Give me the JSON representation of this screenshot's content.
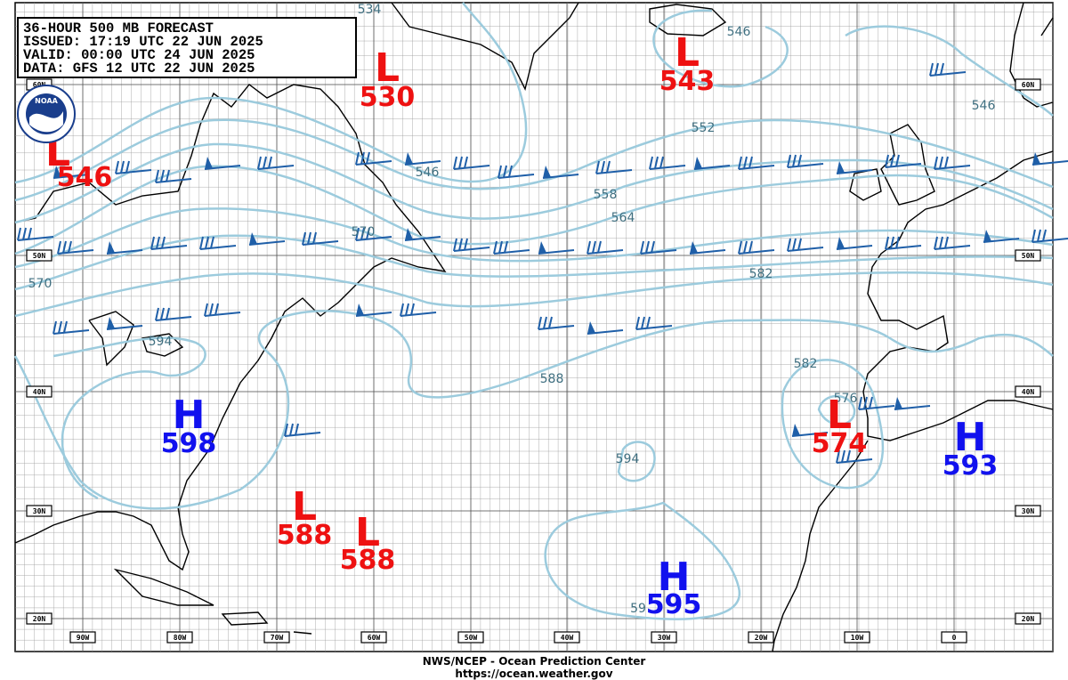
{
  "header": {
    "lines": [
      "36-HOUR 500 MB FORECAST",
      "ISSUED: 17:19 UTC 22 JUN 2025",
      "VALID:  00:00 UTC 24 JUN 2025",
      "DATA:  GFS 12 UTC 22 JUN 2025"
    ]
  },
  "logo": "NOAA",
  "centers": [
    {
      "letter": "L",
      "value": 530,
      "color": "#ee1111"
    },
    {
      "letter": "L",
      "value": 543,
      "color": "#ee1111"
    },
    {
      "letter": "L",
      "value": 546,
      "color": "#ee1111"
    },
    {
      "letter": "H",
      "value": 598,
      "color": "#1111ee"
    },
    {
      "letter": "L",
      "value": 588,
      "color": "#ee1111"
    },
    {
      "letter": "L",
      "value": 588,
      "color": "#ee1111"
    },
    {
      "letter": "L",
      "value": 574,
      "color": "#ee1111"
    },
    {
      "letter": "H",
      "value": 593,
      "color": "#1111ee"
    },
    {
      "letter": "H",
      "value": 595,
      "color": "#1111ee"
    }
  ],
  "contour_labels": [
    534,
    546,
    546,
    552,
    546,
    558,
    564,
    570,
    570,
    582,
    594,
    588,
    582,
    576,
    594,
    "59"
  ],
  "lat_labels": [
    "60N",
    "50N",
    "40N",
    "30N",
    "20N"
  ],
  "lon_labels": [
    "90W",
    "80W",
    "70W",
    "60W",
    "50W",
    "40W",
    "30W",
    "20W",
    "10W",
    "0"
  ],
  "footer": {
    "lines": [
      "NWS/NCEP - Ocean Prediction Center",
      "https://ocean.weather.gov"
    ]
  }
}
